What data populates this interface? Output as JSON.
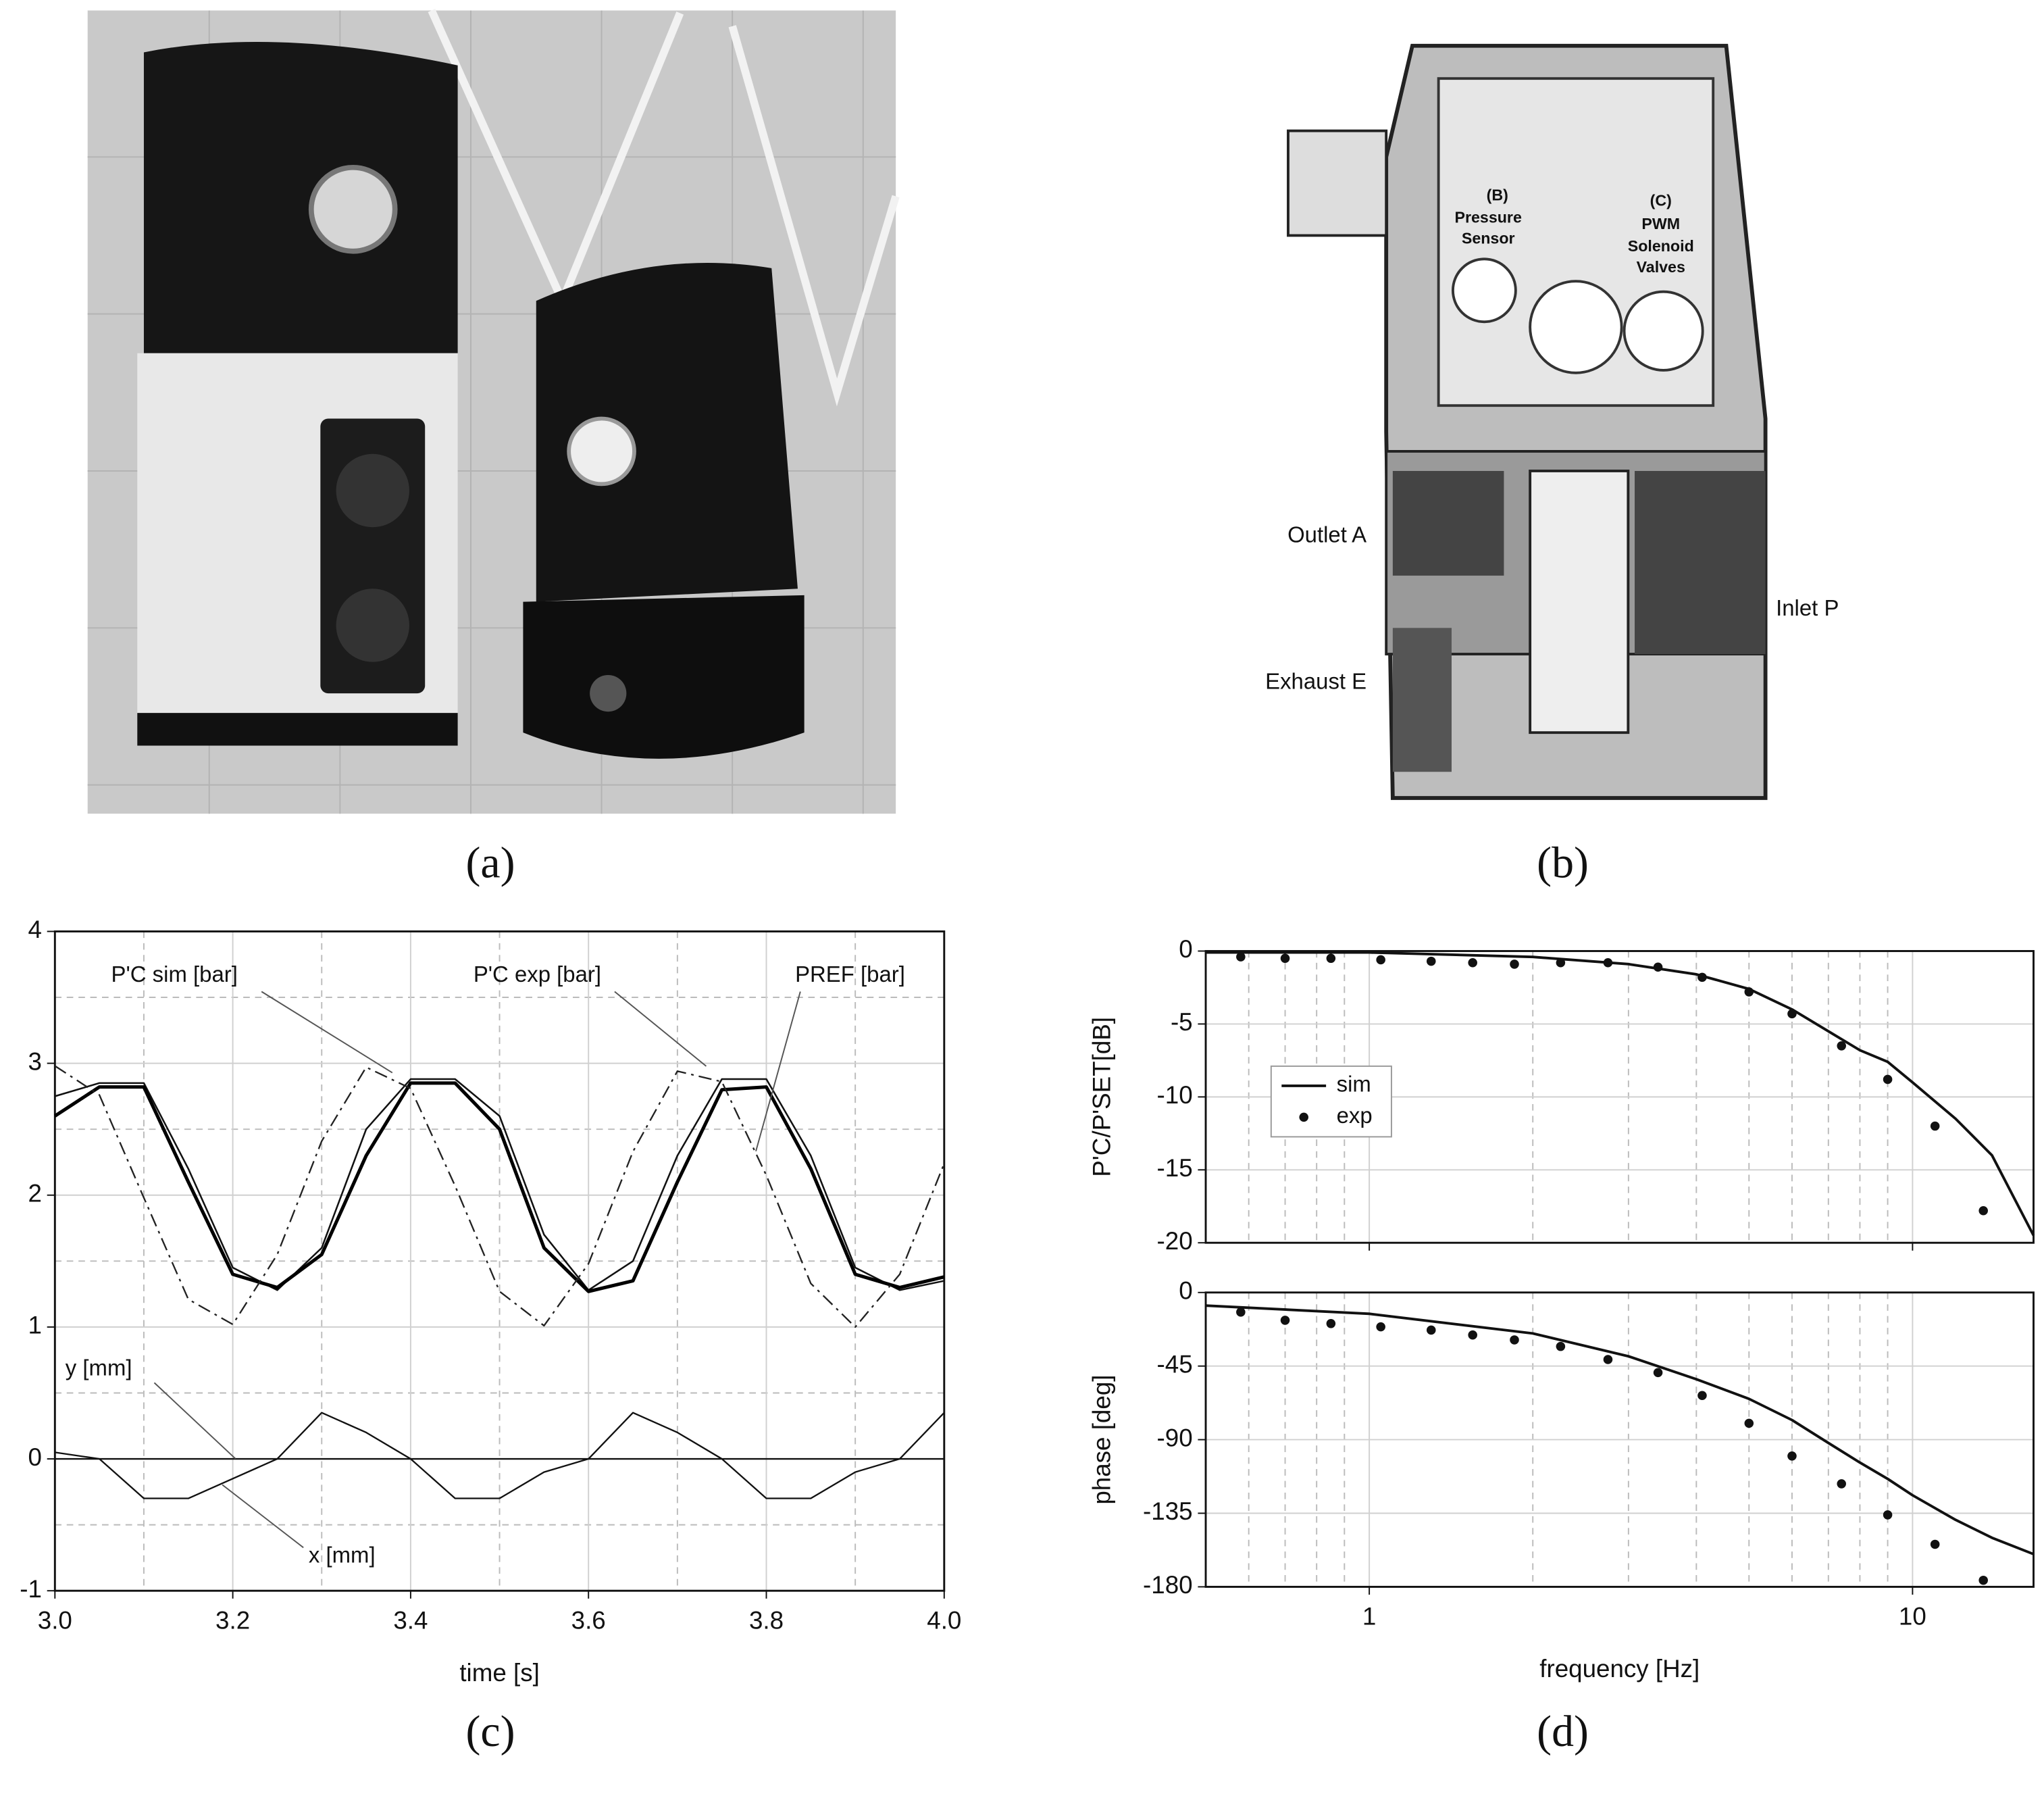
{
  "panels": {
    "a": {
      "caption": "(a)"
    },
    "b": {
      "caption": "(b)",
      "sensor_label": [
        "(B)",
        "Pressure",
        "Sensor"
      ],
      "valve_label": [
        "(C)",
        "PWM",
        "Solenoid",
        "Valves"
      ],
      "outlet": "Outlet A",
      "inlet": "Inlet P",
      "exhaust": "Exhaust E"
    },
    "c": {
      "caption": "(c)"
    },
    "d": {
      "caption": "(d)"
    }
  },
  "chart_data": [
    {
      "type": "line",
      "xlabel": "time [s]",
      "x": [
        3,
        3.05,
        3.1,
        3.15,
        3.2,
        3.25,
        3.3,
        3.35,
        3.4,
        3.45,
        3.5,
        3.55,
        3.6,
        3.65,
        3.7,
        3.75,
        3.8,
        3.85,
        3.9,
        3.95,
        4
      ],
      "xlim": [
        3,
        4
      ],
      "ylim": [
        -1,
        4
      ],
      "xticks": [
        {
          "value": 3,
          "label": "3.0"
        },
        3.2,
        3.4,
        3.6,
        3.8,
        {
          "value": 4,
          "label": "4.0"
        }
      ],
      "yticks": [
        -1,
        0,
        1,
        2,
        3,
        4
      ],
      "xminor_ticks": [
        3.1,
        3.3,
        3.5,
        3.7,
        3.9
      ],
      "yminor_ticks": [
        -0.5,
        0.5,
        1.5,
        2.5,
        3.5
      ],
      "grid": true,
      "series": [
        {
          "name": "P'C sim [bar]",
          "color": "#111111",
          "dash": "solid",
          "width": 1.3,
          "values": [
            2.75,
            2.85,
            2.85,
            2.2,
            1.45,
            1.28,
            1.6,
            2.5,
            2.88,
            2.88,
            2.6,
            1.7,
            1.28,
            1.5,
            2.3,
            2.88,
            2.88,
            2.3,
            1.45,
            1.28,
            1.35
          ]
        },
        {
          "name": "P'C exp [bar]",
          "color": "#000000",
          "dash": "solid",
          "width": 2.6,
          "values": [
            2.6,
            2.82,
            2.82,
            2.1,
            1.4,
            1.3,
            1.55,
            2.3,
            2.85,
            2.85,
            2.5,
            1.6,
            1.27,
            1.35,
            2.1,
            2.8,
            2.82,
            2.2,
            1.4,
            1.3,
            1.38
          ]
        },
        {
          "name": "PREF [bar]",
          "color": "#222222",
          "dash": "dashdot",
          "width": 1.2,
          "values": [
            2.98,
            2.76,
            1.98,
            1.21,
            1.02,
            1.55,
            2.41,
            2.97,
            2.81,
            2.07,
            1.27,
            1.01,
            1.48,
            2.33,
            2.94,
            2.86,
            2.15,
            1.33,
            1,
            1.4,
            2.24
          ]
        },
        {
          "name": "y [mm]",
          "color": "#111111",
          "dash": "solid",
          "width": 1.2,
          "values": [
            0.05,
            0,
            0,
            0,
            0,
            0,
            0.35,
            0.2,
            0,
            0,
            0,
            0,
            0,
            0.35,
            0.2,
            0,
            0,
            0,
            0,
            0,
            0.35
          ]
        },
        {
          "name": "x [mm]",
          "color": "#111111",
          "dash": "solid",
          "width": 1.2,
          "values": [
            0,
            0,
            -0.3,
            -0.3,
            -0.15,
            0,
            0,
            0,
            0,
            -0.3,
            -0.3,
            -0.1,
            0,
            0,
            0,
            0,
            -0.3,
            -0.3,
            -0.1,
            0,
            0
          ]
        }
      ]
    },
    {
      "type": "line",
      "xscale": "log",
      "ylabel": "P'C/P'SET[dB]",
      "xlim": [
        0.5,
        16.7
      ],
      "ylim": [
        -20,
        0
      ],
      "xticks": [
        1,
        10
      ],
      "show_xtick_labels": false,
      "xminor_ticks": [
        0.6,
        0.7,
        0.8,
        0.9,
        2,
        3,
        4,
        5,
        6,
        7,
        8,
        9
      ],
      "yticks": [
        0,
        -5,
        -10,
        -15,
        -20
      ],
      "grid": true,
      "legend": "upper-left",
      "series": [
        {
          "name": "sim",
          "color": "#111111",
          "marker": "none",
          "x": [
            0.5,
            1,
            2,
            3,
            4,
            5,
            6,
            7,
            8,
            9,
            10,
            12,
            14,
            16.7
          ],
          "values": [
            -0.1,
            -0.1,
            -0.4,
            -0.9,
            -1.6,
            -2.6,
            -4,
            -5.5,
            -6.8,
            -7.6,
            -9,
            -11.5,
            -14,
            -19.5
          ]
        },
        {
          "name": "exp",
          "color": "#111111",
          "marker": "dot",
          "x": [
            0.58,
            0.7,
            0.85,
            1.05,
            1.3,
            1.55,
            1.85,
            2.25,
            2.75,
            3.4,
            4.1,
            5,
            6,
            7.4,
            9,
            11,
            13.5
          ],
          "values": [
            -0.4,
            -0.5,
            -0.5,
            -0.6,
            -0.7,
            -0.8,
            -0.9,
            -0.8,
            -0.8,
            -1.1,
            -1.8,
            -2.8,
            -4.3,
            -6.5,
            -8.8,
            -12,
            -17.8
          ]
        }
      ]
    },
    {
      "type": "line",
      "xscale": "log",
      "ylabel": "phase [deg]",
      "xlabel": "frequency [Hz]",
      "xlim": [
        0.5,
        16.7
      ],
      "ylim": [
        -180,
        0
      ],
      "xticks": [
        1,
        10
      ],
      "xminor_ticks": [
        0.6,
        0.7,
        0.8,
        0.9,
        2,
        3,
        4,
        5,
        6,
        7,
        8,
        9
      ],
      "yticks": [
        0,
        -45,
        -90,
        -135,
        -180
      ],
      "grid": true,
      "series": [
        {
          "name": "sim",
          "color": "#111111",
          "marker": "none",
          "x": [
            0.5,
            1,
            2,
            3,
            4,
            5,
            6,
            7,
            8,
            9,
            10,
            12,
            14,
            16.7
          ],
          "values": [
            -8,
            -13,
            -25,
            -39,
            -53,
            -65,
            -78,
            -92,
            -104,
            -114,
            -124,
            -139,
            -150,
            -160
          ]
        },
        {
          "name": "exp",
          "color": "#111111",
          "marker": "dot",
          "x": [
            0.58,
            0.7,
            0.85,
            1.05,
            1.3,
            1.55,
            1.85,
            2.25,
            2.75,
            3.4,
            4.1,
            5,
            6,
            7.4,
            9,
            11,
            13.5
          ],
          "values": [
            -12,
            -17,
            -19,
            -21,
            -23,
            -26,
            -29,
            -33,
            -41,
            -49,
            -63,
            -80,
            -100,
            -117,
            -136,
            -154,
            -176
          ]
        }
      ]
    }
  ]
}
